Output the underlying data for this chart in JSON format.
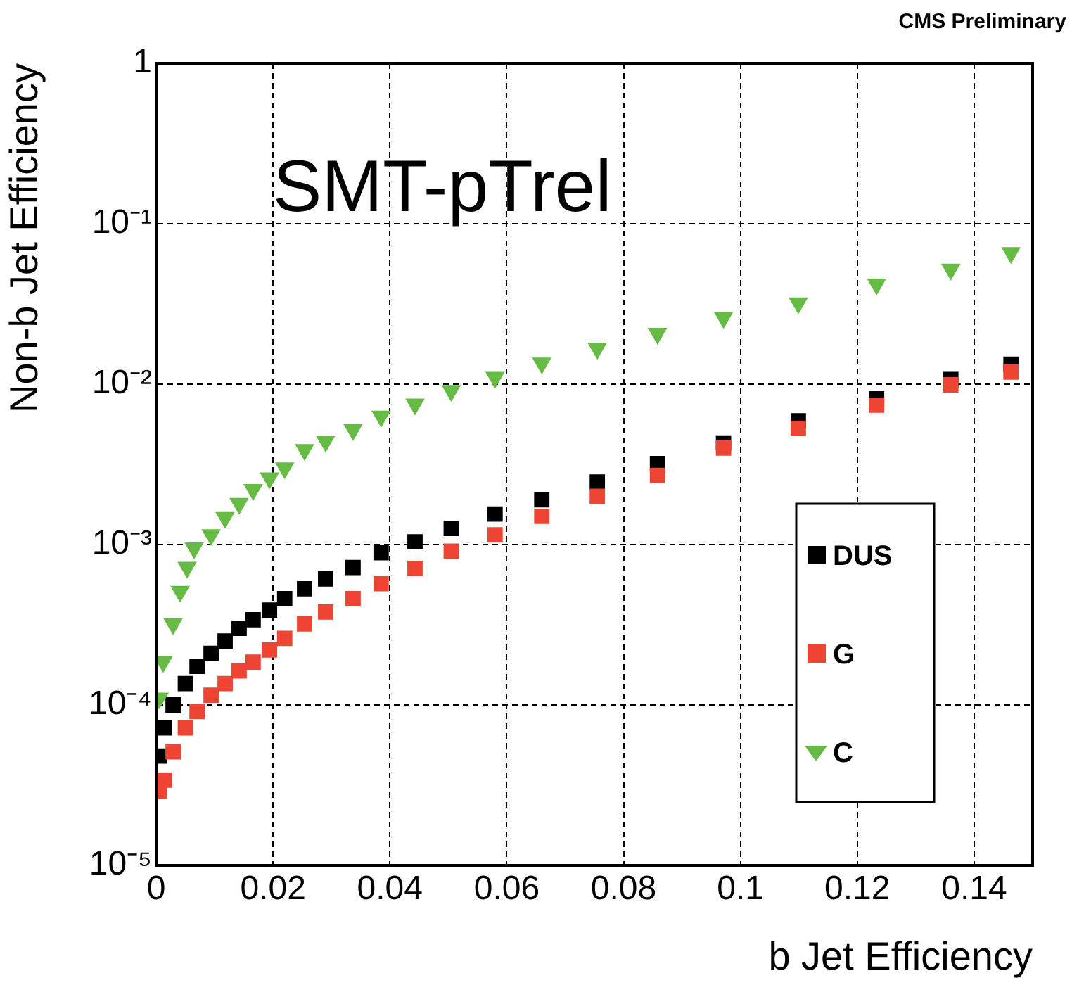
{
  "chart_data": {
    "type": "scatter",
    "title": "SMT-pTrel",
    "xlabel": "b Jet Efficiency",
    "ylabel": "Non-b Jet Efficiency",
    "annotations": [
      "CMS Preliminary"
    ],
    "xlim": [
      0,
      0.15
    ],
    "xticks": [
      0,
      0.02,
      0.04,
      0.06,
      0.08,
      0.1,
      0.12,
      0.14
    ],
    "ylim": [
      1e-05,
      1
    ],
    "yticks": [
      {
        "value": 1e-05,
        "label": "10⁻⁵"
      },
      {
        "value": 0.0001,
        "label": "10⁻⁴"
      },
      {
        "value": 0.001,
        "label": "10⁻³"
      },
      {
        "value": 0.01,
        "label": "10⁻²"
      },
      {
        "value": 0.1,
        "label": "10⁻¹"
      },
      1
    ],
    "log": "y",
    "grid": true,
    "legend": "right",
    "series": [
      {
        "name": "DUS",
        "color": "#000000",
        "marker": "square",
        "x": [
          0.0005,
          0.0014,
          0.0029,
          0.005,
          0.007,
          0.0094,
          0.0118,
          0.0142,
          0.0166,
          0.0194,
          0.022,
          0.0254,
          0.029,
          0.0337,
          0.0385,
          0.0443,
          0.0505,
          0.058,
          0.066,
          0.0755,
          0.0858,
          0.0971,
          0.1099,
          0.1233,
          0.136,
          0.1463
        ],
        "values": [
          4.8e-05,
          7.2e-05,
          0.0001,
          0.000136,
          0.000174,
          0.00021,
          0.00025,
          0.0003,
          0.00034,
          0.00039,
          0.00046,
          0.00053,
          0.00061,
          0.00072,
          0.00089,
          0.00104,
          0.00126,
          0.00155,
          0.0019,
          0.00245,
          0.0032,
          0.0043,
          0.0059,
          0.0081,
          0.0107,
          0.0133
        ]
      },
      {
        "name": "G",
        "color": "#ee4433",
        "marker": "square",
        "x": [
          0.0005,
          0.0014,
          0.0029,
          0.005,
          0.007,
          0.0094,
          0.0118,
          0.0142,
          0.0166,
          0.0194,
          0.022,
          0.0254,
          0.029,
          0.0337,
          0.0385,
          0.0443,
          0.0505,
          0.058,
          0.066,
          0.0755,
          0.0858,
          0.0971,
          0.1099,
          0.1233,
          0.136,
          0.1463
        ],
        "values": [
          2.9e-05,
          3.4e-05,
          5.1e-05,
          7.2e-05,
          9.1e-05,
          0.000115,
          0.000136,
          0.000163,
          0.000185,
          0.00022,
          0.00026,
          0.00032,
          0.00038,
          0.00046,
          0.00057,
          0.00071,
          0.00091,
          0.00115,
          0.0015,
          0.002,
          0.0027,
          0.004,
          0.0053,
          0.0074,
          0.0099,
          0.0119
        ]
      },
      {
        "name": "C",
        "color": "#66bb44",
        "marker": "triangle",
        "x": [
          0.0005,
          0.0012,
          0.0029,
          0.0041,
          0.0053,
          0.0065,
          0.0094,
          0.0118,
          0.0142,
          0.0166,
          0.0194,
          0.022,
          0.0254,
          0.029,
          0.0337,
          0.0385,
          0.0443,
          0.0505,
          0.058,
          0.066,
          0.0755,
          0.0858,
          0.0971,
          0.1099,
          0.1233,
          0.136,
          0.1463
        ],
        "values": [
          0.00011,
          0.000186,
          0.00032,
          0.00051,
          0.00072,
          0.00095,
          0.00115,
          0.00147,
          0.0018,
          0.0022,
          0.0026,
          0.003,
          0.0039,
          0.0044,
          0.0052,
          0.0063,
          0.0075,
          0.0091,
          0.011,
          0.0135,
          0.0167,
          0.0207,
          0.026,
          0.032,
          0.042,
          0.052,
          0.066
        ]
      }
    ]
  }
}
